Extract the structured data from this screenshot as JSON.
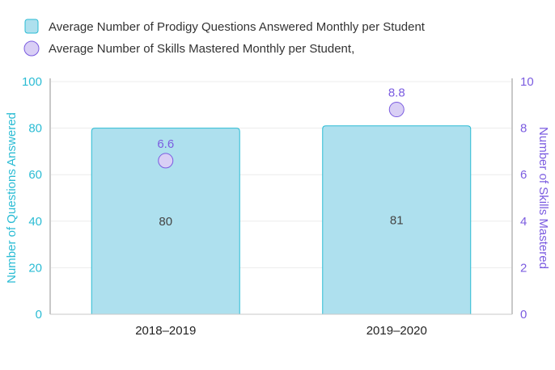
{
  "chart_data": {
    "type": "bar",
    "categories": [
      "2018–2019",
      "2019–2020"
    ],
    "series": [
      {
        "name": "Average Number of Prodigy Questions Answered Monthly per Student",
        "type": "bar",
        "axis": "left",
        "values": [
          80,
          81
        ],
        "labels": [
          "80",
          "81"
        ]
      },
      {
        "name": "Average Number of Skills Mastered Monthly per Student,",
        "type": "scatter",
        "axis": "right",
        "values": [
          6.6,
          8.8
        ],
        "labels": [
          "6.6",
          "8.8"
        ]
      }
    ],
    "ylabel": "Number of Questions Answered",
    "y2label": "Number of Skills Mastered",
    "ylim": [
      0,
      100
    ],
    "y2lim": [
      0,
      10
    ],
    "yticks": [
      "0",
      "20",
      "40",
      "60",
      "80",
      "100"
    ],
    "y2ticks": [
      "0",
      "2",
      "4",
      "6",
      "8",
      "10"
    ],
    "grid": true,
    "legend": "top-left",
    "colors": {
      "bar_fill": "#aee0ee",
      "bar_stroke": "#2bbcd4",
      "dot_fill": "#d9cff5",
      "dot_stroke": "#7b5ce0",
      "left_axis": "#2bbcd4",
      "right_axis": "#7b5ce0"
    }
  }
}
